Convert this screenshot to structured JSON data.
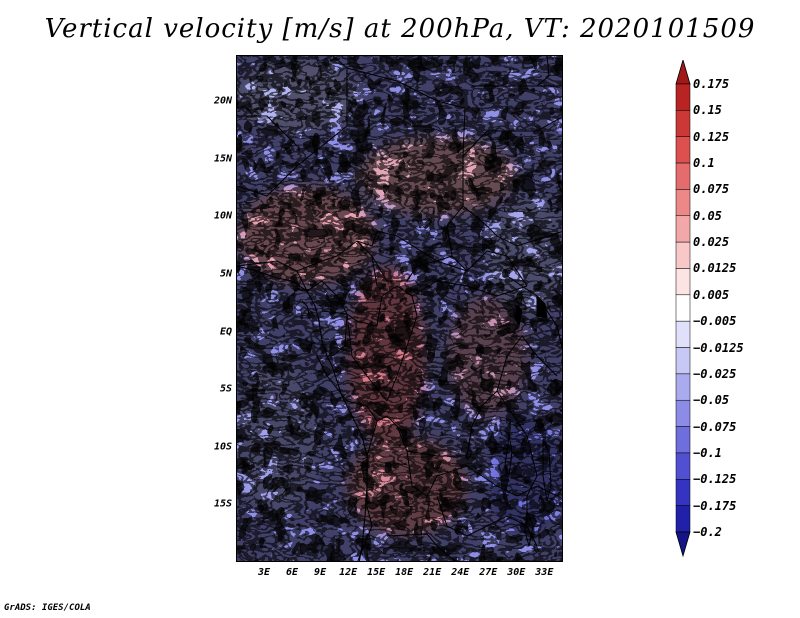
{
  "title": "Vertical velocity [m/s] at 200hPa, VT: 2020101509",
  "credit": "GrADS: IGES/COLA",
  "map": {
    "lon_range": [
      0,
      35
    ],
    "lat_range": [
      -20,
      24
    ],
    "lat_labels": [
      {
        "lat": 20,
        "text": "20N"
      },
      {
        "lat": 15,
        "text": "15N"
      },
      {
        "lat": 10,
        "text": "10N"
      },
      {
        "lat": 5,
        "text": "5N"
      },
      {
        "lat": 0,
        "text": "EQ"
      },
      {
        "lat": -5,
        "text": "5S"
      },
      {
        "lat": -10,
        "text": "10S"
      },
      {
        "lat": -15,
        "text": "15S"
      }
    ],
    "lon_labels": [
      {
        "lon": 3,
        "text": "3E"
      },
      {
        "lon": 6,
        "text": "6E"
      },
      {
        "lon": 9,
        "text": "9E"
      },
      {
        "lon": 12,
        "text": "12E"
      },
      {
        "lon": 15,
        "text": "15E"
      },
      {
        "lon": 18,
        "text": "18E"
      },
      {
        "lon": 21,
        "text": "21E"
      },
      {
        "lon": 24,
        "text": "24E"
      },
      {
        "lon": 27,
        "text": "27E"
      },
      {
        "lon": 30,
        "text": "30E"
      },
      {
        "lon": 33,
        "text": "33E"
      }
    ]
  },
  "colorbar": {
    "levels": [
      {
        "text": "0.175"
      },
      {
        "text": "0.15"
      },
      {
        "text": "0.125"
      },
      {
        "text": "0.1"
      },
      {
        "text": "0.075"
      },
      {
        "text": "0.05"
      },
      {
        "text": "0.025"
      },
      {
        "text": "0.0125"
      },
      {
        "text": "0.005"
      },
      {
        "text": "−0.005"
      },
      {
        "text": "−0.0125"
      },
      {
        "text": "−0.025"
      },
      {
        "text": "−0.05"
      },
      {
        "text": "−0.075"
      },
      {
        "text": "−0.1"
      },
      {
        "text": "−0.125"
      },
      {
        "text": "−0.175"
      },
      {
        "text": "−0.2"
      }
    ],
    "colors": [
      "#a01818",
      "#b82424",
      "#cc3838",
      "#dc5050",
      "#e46c6c",
      "#ec8888",
      "#f2a8a8",
      "#f8c8c8",
      "#fce4e4",
      "#ffffff",
      "#e0e0fa",
      "#c8c8f4",
      "#aaaaee",
      "#8c8ce6",
      "#6e6edc",
      "#5050d0",
      "#3434c0",
      "#2020a8",
      "#141488"
    ]
  }
}
